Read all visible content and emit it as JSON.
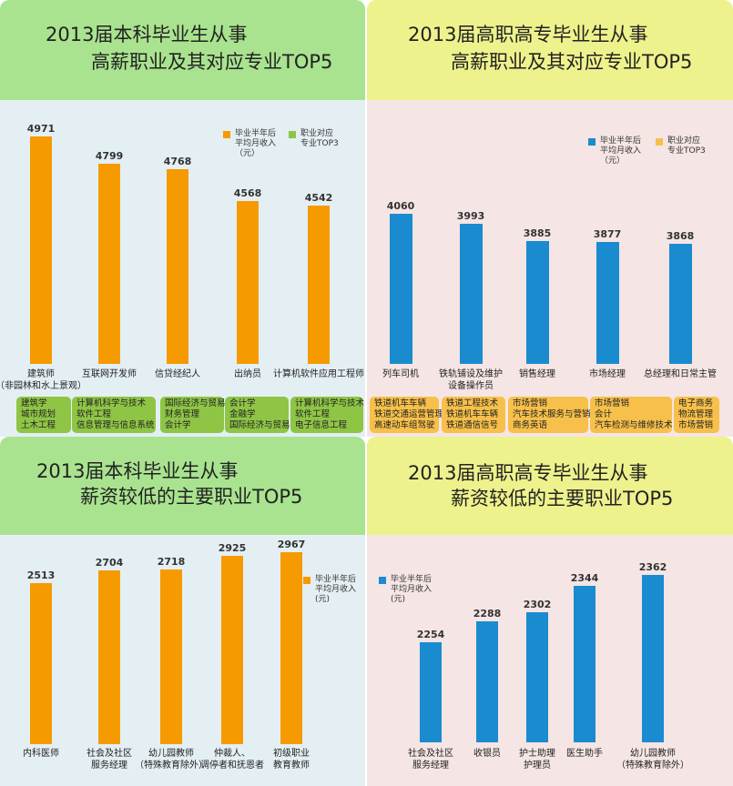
{
  "colors": {
    "green_header": "#a9e38f",
    "yellow_header": "#eef28c",
    "blue_bg": "#e4eff4",
    "pink_bg": "#f5e5e5",
    "orange": "#f59a00",
    "blue": "#1a8bcf",
    "green_box": "#8fc545",
    "yellow_box": "#f7c04a"
  },
  "chart_data": [
    {
      "type": "bar",
      "title": [
        "2013届本科毕业生从事",
        "高薪职业及其对应专业TOP5"
      ],
      "categories": [
        "建筑师\n（非园林和水上景观）",
        "互联网开发师",
        "信贷经纪人",
        "出纳员",
        "计算机软件应用工程师"
      ],
      "values": [
        4971,
        4799,
        4768,
        4568,
        4542
      ],
      "ylim": [
        3550,
        5000
      ],
      "legend": [
        "毕业半年后\n平均月收入\n（元）",
        "职业对应\n专业TOP3"
      ],
      "majors": [
        "建筑学\n城市规划\n土木工程",
        "计算机科学与技术\n软件工程\n信息管理与信息系统",
        "国际经济与贸易\n财务管理\n会计学",
        "会计学\n金融学\n国际经济与贸易",
        "计算机科学与技术\n软件工程\n电子信息工程"
      ]
    },
    {
      "type": "bar",
      "title": [
        "2013届高职高专毕业生从事",
        "高薪职业及其对应专业TOP5"
      ],
      "categories": [
        "列车司机",
        "铁轨铺设及维护\n设备操作员",
        "销售经理",
        "市场经理",
        "总经理和日常主管"
      ],
      "values": [
        4060,
        3993,
        3885,
        3877,
        3868
      ],
      "ylim": [
        3100,
        4100
      ],
      "legend": [
        "毕业半年后\n平均月收入\n（元）",
        "职业对应\n专业TOP3"
      ],
      "majors": [
        "铁道机车车辆\n铁道交通运营管理\n高速动车组驾驶",
        "铁道工程技术\n铁道机车车辆\n铁道通信信号",
        "市场营销\n汽车技术服务与营销\n商务英语",
        "市场营销\n会计\n汽车检测与维修技术",
        "电子商务\n物流管理\n市场营销"
      ]
    },
    {
      "type": "bar",
      "title": [
        "2013届本科毕业生从事",
        "薪资较低的主要职业TOP5"
      ],
      "categories": [
        "内科医师",
        "社会及社区\n服务经理",
        "幼儿园教师\n（特殊教育除外）",
        "仲裁人、\n调停者和抚恩者",
        "初级职业\n教育教师"
      ],
      "values": [
        2513,
        2704,
        2718,
        2925,
        2967
      ],
      "ylim": [
        140,
        3000
      ],
      "legend": [
        "毕业半年后\n平均月收入\n(元)"
      ]
    },
    {
      "type": "bar",
      "title": [
        "2013届高职高专毕业生从事",
        "薪资较低的主要职业TOP5"
      ],
      "categories": [
        "社会及社区\n服务经理",
        "收银员",
        "护士助理\n护理员",
        "医生助手",
        "幼儿园教师\n（特殊教育除外）"
      ],
      "values": [
        2254,
        2288,
        2302,
        2344,
        2362
      ],
      "ylim": [
        2095,
        2400
      ],
      "legend": [
        "毕业半年后\n平均月收入\n(元)"
      ]
    }
  ]
}
